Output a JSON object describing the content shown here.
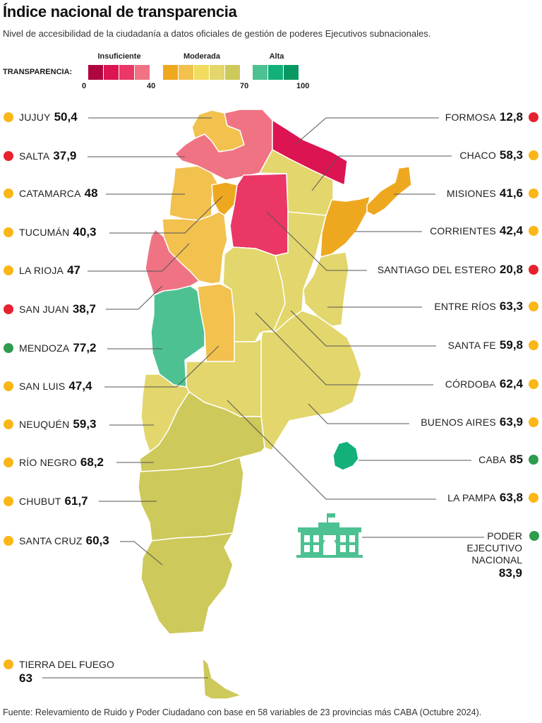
{
  "header": {
    "title": "Índice nacional de transparencia",
    "subtitle": "Nivel de accesibilidad de la ciudadanía a datos oficiales de gestión de poderes Ejecutivos subnacionales."
  },
  "legend": {
    "label": "TRANSPARENCIA:",
    "groups": [
      {
        "title": "Insuficiente",
        "colors": [
          "#b0063f",
          "#dc1452",
          "#ea3766",
          "#f07384"
        ]
      },
      {
        "title": "Moderada",
        "colors": [
          "#eea820",
          "#f2c14e",
          "#f2dc60",
          "#e2d66c",
          "#cdc95a"
        ]
      },
      {
        "title": "Alta",
        "colors": [
          "#4dc192",
          "#14b07a",
          "#0a9862"
        ]
      }
    ],
    "ticks": [
      "0",
      "40",
      "70",
      "100"
    ]
  },
  "status_colors": {
    "insuficiente": "#e8212e",
    "moderada": "#fbb617",
    "alta": "#2e9b4f"
  },
  "provinces_left": [
    {
      "name": "JUJUY",
      "value": "50,4",
      "level": "moderada"
    },
    {
      "name": "SALTA",
      "value": "37,9",
      "level": "insuficiente"
    },
    {
      "name": "CATAMARCA",
      "value": "48",
      "level": "moderada"
    },
    {
      "name": "TUCUMÁN",
      "value": "40,3",
      "level": "moderada"
    },
    {
      "name": "LA RIOJA",
      "value": "47",
      "level": "moderada"
    },
    {
      "name": "SAN JUAN",
      "value": "38,7",
      "level": "insuficiente"
    },
    {
      "name": "MENDOZA",
      "value": "77,2",
      "level": "alta"
    },
    {
      "name": "SAN LUIS",
      "value": "47,4",
      "level": "moderada"
    },
    {
      "name": "NEUQUÉN",
      "value": "59,3",
      "level": "moderada"
    },
    {
      "name": "RÍO NEGRO",
      "value": "68,2",
      "level": "moderada"
    },
    {
      "name": "CHUBUT",
      "value": "61,7",
      "level": "moderada"
    },
    {
      "name": "SANTA CRUZ",
      "value": "60,3",
      "level": "moderada"
    },
    {
      "name": "TIERRA DEL FUEGO",
      "value": "63",
      "level": "moderada"
    }
  ],
  "provinces_right": [
    {
      "name": "FORMOSA",
      "value": "12,8",
      "level": "insuficiente"
    },
    {
      "name": "CHACO",
      "value": "58,3",
      "level": "moderada"
    },
    {
      "name": "MISIONES",
      "value": "41,6",
      "level": "moderada"
    },
    {
      "name": "CORRIENTES",
      "value": "42,4",
      "level": "moderada"
    },
    {
      "name": "SANTIAGO DEL ESTERO",
      "value": "20,8",
      "level": "insuficiente"
    },
    {
      "name": "ENTRE RÍOS",
      "value": "63,3",
      "level": "moderada"
    },
    {
      "name": "SANTA FE",
      "value": "59,8",
      "level": "moderada"
    },
    {
      "name": "CÓRDOBA",
      "value": "62,4",
      "level": "moderada"
    },
    {
      "name": "BUENOS AIRES",
      "value": "63,9",
      "level": "moderada"
    },
    {
      "name": "CABA",
      "value": "85",
      "level": "alta"
    },
    {
      "name": "LA PAMPA",
      "value": "63,8",
      "level": "moderada"
    }
  ],
  "national": {
    "name_lines": [
      "PODER",
      "EJECUTIVO",
      "NACIONAL"
    ],
    "value": "83,9",
    "level": "alta"
  },
  "source": "Fuente: Relevamiento de Ruido y Poder Ciudadano con base en 58 variables de 23 provincias más CABA (Octubre 2024)."
}
